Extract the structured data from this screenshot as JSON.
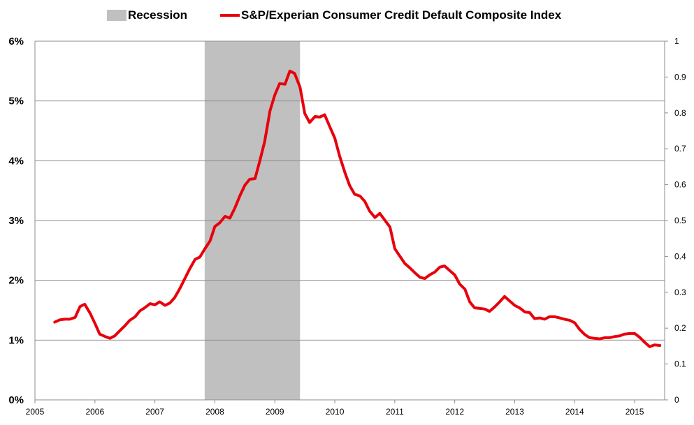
{
  "chart_data": {
    "type": "line",
    "title": "",
    "xlabel": "",
    "ylabel": "",
    "x_tick_labels": [
      "2005",
      "2006",
      "2007",
      "2008",
      "2009",
      "2010",
      "2011",
      "2012",
      "2013",
      "2014",
      "2015"
    ],
    "y_left_tick_labels": [
      "0%",
      "1%",
      "2%",
      "3%",
      "4%",
      "5%",
      "6%"
    ],
    "y_right_tick_labels": [
      "0",
      "0.1",
      "0.2",
      "0.3",
      "0.4",
      "0.5",
      "0.6",
      "0.7",
      "0.8",
      "0.9",
      "1"
    ],
    "xlim": [
      2005,
      2015.5
    ],
    "ylim": [
      0,
      6
    ],
    "y2lim": [
      0,
      1
    ],
    "grid": true,
    "legend_position": "top-center",
    "legend": {
      "recession_label": "Recession",
      "series_label": "S&P/Experian Consumer Credit Default Composite Index"
    },
    "colors": {
      "series": "#e8000b",
      "recession": "#c0c0c0",
      "grid": "#8c8c8c"
    },
    "recession": {
      "start": 2007.83,
      "end": 2009.42
    },
    "series": [
      {
        "name": "S&P/Experian Consumer Credit Default Composite Index",
        "points": [
          [
            2005.33,
            1.3
          ],
          [
            2005.42,
            1.34
          ],
          [
            2005.5,
            1.35
          ],
          [
            2005.58,
            1.35
          ],
          [
            2005.67,
            1.38
          ],
          [
            2005.75,
            1.56
          ],
          [
            2005.83,
            1.6
          ],
          [
            2005.92,
            1.45
          ],
          [
            2006.0,
            1.28
          ],
          [
            2006.08,
            1.1
          ],
          [
            2006.17,
            1.06
          ],
          [
            2006.25,
            1.03
          ],
          [
            2006.33,
            1.07
          ],
          [
            2006.42,
            1.16
          ],
          [
            2006.5,
            1.24
          ],
          [
            2006.58,
            1.33
          ],
          [
            2006.67,
            1.39
          ],
          [
            2006.75,
            1.49
          ],
          [
            2006.83,
            1.54
          ],
          [
            2006.92,
            1.61
          ],
          [
            2007.0,
            1.59
          ],
          [
            2007.08,
            1.64
          ],
          [
            2007.17,
            1.58
          ],
          [
            2007.25,
            1.62
          ],
          [
            2007.33,
            1.71
          ],
          [
            2007.42,
            1.87
          ],
          [
            2007.5,
            2.03
          ],
          [
            2007.58,
            2.19
          ],
          [
            2007.67,
            2.35
          ],
          [
            2007.75,
            2.39
          ],
          [
            2007.83,
            2.52
          ],
          [
            2007.92,
            2.66
          ],
          [
            2008.0,
            2.9
          ],
          [
            2008.08,
            2.96
          ],
          [
            2008.17,
            3.07
          ],
          [
            2008.25,
            3.04
          ],
          [
            2008.33,
            3.2
          ],
          [
            2008.42,
            3.42
          ],
          [
            2008.5,
            3.59
          ],
          [
            2008.58,
            3.69
          ],
          [
            2008.67,
            3.7
          ],
          [
            2008.75,
            4.0
          ],
          [
            2008.83,
            4.32
          ],
          [
            2008.92,
            4.84
          ],
          [
            2009.0,
            5.1
          ],
          [
            2009.08,
            5.29
          ],
          [
            2009.17,
            5.28
          ],
          [
            2009.25,
            5.5
          ],
          [
            2009.33,
            5.46
          ],
          [
            2009.42,
            5.23
          ],
          [
            2009.5,
            4.79
          ],
          [
            2009.58,
            4.64
          ],
          [
            2009.67,
            4.74
          ],
          [
            2009.75,
            4.73
          ],
          [
            2009.83,
            4.77
          ],
          [
            2009.92,
            4.56
          ],
          [
            2010.0,
            4.38
          ],
          [
            2010.08,
            4.08
          ],
          [
            2010.17,
            3.8
          ],
          [
            2010.25,
            3.58
          ],
          [
            2010.33,
            3.44
          ],
          [
            2010.42,
            3.41
          ],
          [
            2010.5,
            3.32
          ],
          [
            2010.58,
            3.16
          ],
          [
            2010.67,
            3.05
          ],
          [
            2010.75,
            3.12
          ],
          [
            2010.83,
            3.01
          ],
          [
            2010.92,
            2.89
          ],
          [
            2011.0,
            2.53
          ],
          [
            2011.08,
            2.41
          ],
          [
            2011.17,
            2.28
          ],
          [
            2011.25,
            2.21
          ],
          [
            2011.33,
            2.13
          ],
          [
            2011.42,
            2.05
          ],
          [
            2011.5,
            2.03
          ],
          [
            2011.58,
            2.09
          ],
          [
            2011.67,
            2.14
          ],
          [
            2011.75,
            2.22
          ],
          [
            2011.83,
            2.24
          ],
          [
            2011.92,
            2.16
          ],
          [
            2012.0,
            2.09
          ],
          [
            2012.08,
            1.94
          ],
          [
            2012.17,
            1.85
          ],
          [
            2012.25,
            1.64
          ],
          [
            2012.33,
            1.54
          ],
          [
            2012.42,
            1.53
          ],
          [
            2012.5,
            1.52
          ],
          [
            2012.58,
            1.48
          ],
          [
            2012.67,
            1.56
          ],
          [
            2012.75,
            1.64
          ],
          [
            2012.83,
            1.73
          ],
          [
            2012.92,
            1.65
          ],
          [
            2013.0,
            1.58
          ],
          [
            2013.08,
            1.54
          ],
          [
            2013.17,
            1.47
          ],
          [
            2013.25,
            1.46
          ],
          [
            2013.33,
            1.36
          ],
          [
            2013.42,
            1.37
          ],
          [
            2013.5,
            1.35
          ],
          [
            2013.58,
            1.39
          ],
          [
            2013.67,
            1.39
          ],
          [
            2013.75,
            1.37
          ],
          [
            2013.83,
            1.35
          ],
          [
            2013.92,
            1.33
          ],
          [
            2014.0,
            1.29
          ],
          [
            2014.08,
            1.18
          ],
          [
            2014.17,
            1.09
          ],
          [
            2014.25,
            1.04
          ],
          [
            2014.33,
            1.03
          ],
          [
            2014.42,
            1.02
          ],
          [
            2014.5,
            1.04
          ],
          [
            2014.58,
            1.04
          ],
          [
            2014.67,
            1.06
          ],
          [
            2014.75,
            1.07
          ],
          [
            2014.83,
            1.1
          ],
          [
            2014.92,
            1.11
          ],
          [
            2015.0,
            1.11
          ],
          [
            2015.08,
            1.05
          ],
          [
            2015.17,
            0.96
          ],
          [
            2015.25,
            0.89
          ],
          [
            2015.33,
            0.92
          ],
          [
            2015.42,
            0.91
          ]
        ]
      }
    ]
  }
}
